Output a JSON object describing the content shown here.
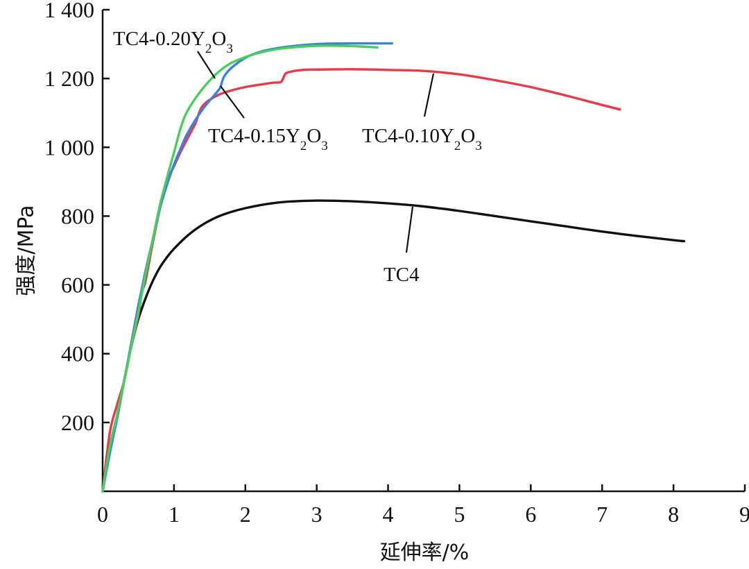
{
  "chart_data": {
    "type": "line",
    "xlabel": "延伸率/%",
    "ylabel": "强度/MPa",
    "xlim": [
      0,
      9
    ],
    "ylim": [
      0,
      1400
    ],
    "xticks": [
      0,
      1,
      2,
      3,
      4,
      5,
      6,
      7,
      8,
      9
    ],
    "xtick_labels": [
      "0",
      "1",
      "2",
      "3",
      "4",
      "5",
      "6",
      "7",
      "8",
      "9"
    ],
    "yticks": [
      200,
      400,
      600,
      800,
      1000,
      1200,
      1400
    ],
    "ytick_labels": [
      "200",
      "400",
      "600",
      "800",
      "1 000",
      "1 200",
      "1 400"
    ],
    "grid": false,
    "legend": "none",
    "series": [
      {
        "name": "TC4",
        "label": {
          "main": "TC4",
          "sub1": "",
          "mid": "",
          "sub2": ""
        },
        "color": "#111111",
        "x": [
          0,
          0.1,
          0.2,
          0.3,
          0.4,
          0.5,
          0.6,
          0.7,
          0.8,
          0.9,
          1.0,
          1.2,
          1.4,
          1.6,
          1.8,
          2.0,
          2.3,
          2.6,
          3.0,
          3.5,
          4.0,
          4.5,
          5.0,
          5.5,
          6.0,
          6.5,
          7.0,
          7.5,
          8.0,
          8.15
        ],
        "y": [
          0,
          120,
          210,
          320,
          420,
          500,
          560,
          610,
          650,
          680,
          705,
          745,
          775,
          797,
          812,
          823,
          835,
          842,
          845,
          843,
          837,
          828,
          815,
          800,
          785,
          770,
          755,
          742,
          730,
          727
        ]
      },
      {
        "name": "TC4-0.10Y2O3",
        "label": {
          "main": "TC4-0.10Y",
          "sub1": "2",
          "mid": "O",
          "sub2": "3"
        },
        "color": "#e8394a",
        "x": [
          0,
          0.1,
          0.2,
          0.3,
          0.4,
          0.5,
          0.55,
          0.6,
          0.7,
          0.8,
          0.9,
          1.0,
          1.1,
          1.2,
          1.3,
          1.4,
          1.6,
          1.8,
          2.0,
          2.2,
          2.4,
          2.5,
          2.55,
          2.6,
          2.8,
          3.0,
          3.5,
          4.0,
          4.5,
          5.0,
          5.5,
          6.0,
          6.5,
          7.0,
          7.25
        ],
        "y": [
          0,
          170,
          250,
          320,
          420,
          510,
          580,
          610,
          720,
          820,
          900,
          945,
          990,
          1030,
          1070,
          1120,
          1150,
          1165,
          1175,
          1182,
          1188,
          1190,
          1210,
          1218,
          1225,
          1226,
          1227,
          1225,
          1222,
          1212,
          1195,
          1175,
          1150,
          1123,
          1110
        ]
      },
      {
        "name": "TC4-0.15Y2O3",
        "label": {
          "main": "TC4-0.15Y",
          "sub1": "2",
          "mid": "O",
          "sub2": "3"
        },
        "color": "#3b82e0",
        "x": [
          0,
          0.1,
          0.2,
          0.3,
          0.4,
          0.5,
          0.6,
          0.7,
          0.8,
          0.9,
          1.0,
          1.1,
          1.2,
          1.4,
          1.6,
          1.65,
          1.7,
          1.8,
          2.0,
          2.2,
          2.5,
          3.0,
          3.5,
          4.0,
          4.05
        ],
        "y": [
          0,
          110,
          210,
          320,
          430,
          540,
          640,
          730,
          820,
          890,
          950,
          1000,
          1045,
          1110,
          1160,
          1175,
          1205,
          1230,
          1260,
          1277,
          1290,
          1300,
          1302,
          1302,
          1302
        ]
      },
      {
        "name": "TC4-0.20Y2O3",
        "label": {
          "main": "TC4-0.20Y",
          "sub1": "2",
          "mid": "O",
          "sub2": "3"
        },
        "color": "#46d05a",
        "x": [
          0,
          0.1,
          0.2,
          0.3,
          0.4,
          0.5,
          0.6,
          0.7,
          0.8,
          0.9,
          1.0,
          1.1,
          1.2,
          1.4,
          1.6,
          1.8,
          2.0,
          2.2,
          2.5,
          3.0,
          3.5,
          3.8,
          3.85
        ],
        "y": [
          0,
          130,
          220,
          320,
          420,
          520,
          630,
          730,
          830,
          910,
          985,
          1060,
          1110,
          1170,
          1215,
          1245,
          1262,
          1275,
          1287,
          1295,
          1294,
          1291,
          1290
        ]
      }
    ]
  }
}
